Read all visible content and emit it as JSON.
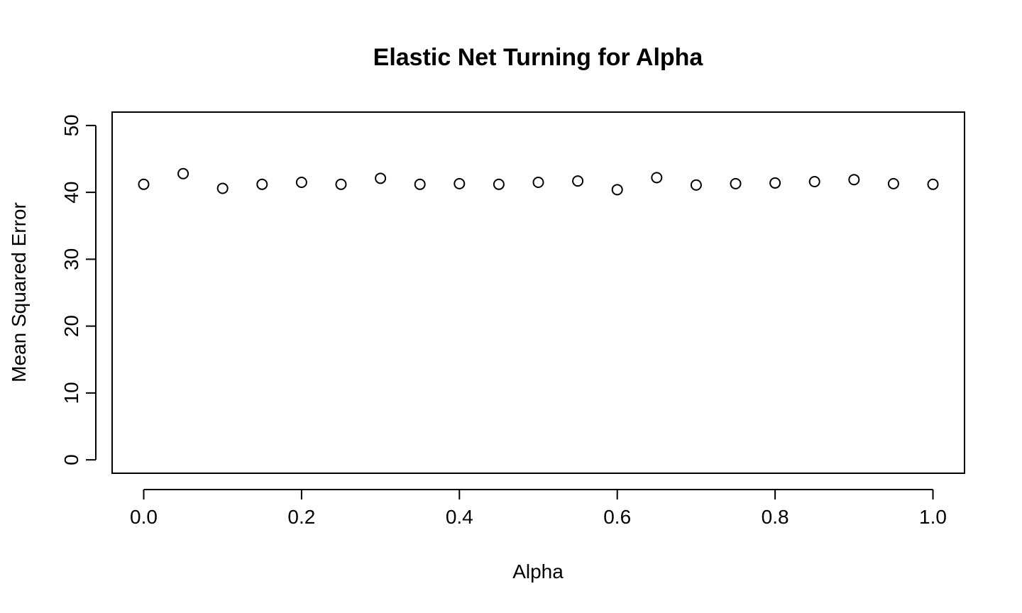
{
  "chart_data": {
    "type": "scatter",
    "title": "Elastic Net Turning for Alpha",
    "xlabel": "Alpha",
    "ylabel": "Mean Squared Error",
    "xlim": [
      -0.04,
      1.04
    ],
    "ylim": [
      -2,
      52
    ],
    "xticks": [
      "0.0",
      "0.2",
      "0.4",
      "0.6",
      "0.8",
      "1.0"
    ],
    "xtick_values": [
      0.0,
      0.2,
      0.4,
      0.6,
      0.8,
      1.0
    ],
    "yticks": [
      "0",
      "10",
      "20",
      "30",
      "40",
      "50"
    ],
    "ytick_values": [
      0,
      10,
      20,
      30,
      40,
      50
    ],
    "grid": false,
    "marker": "open-circle",
    "x": [
      0.0,
      0.05,
      0.1,
      0.15,
      0.2,
      0.25,
      0.3,
      0.35,
      0.4,
      0.45,
      0.5,
      0.55,
      0.6,
      0.65,
      0.7,
      0.75,
      0.8,
      0.85,
      0.9,
      0.95,
      1.0
    ],
    "y": [
      41.2,
      42.8,
      40.6,
      41.2,
      41.5,
      41.2,
      42.1,
      41.2,
      41.3,
      41.2,
      41.5,
      41.7,
      40.4,
      42.2,
      41.1,
      41.3,
      41.4,
      41.6,
      41.9,
      41.3,
      41.2
    ]
  }
}
